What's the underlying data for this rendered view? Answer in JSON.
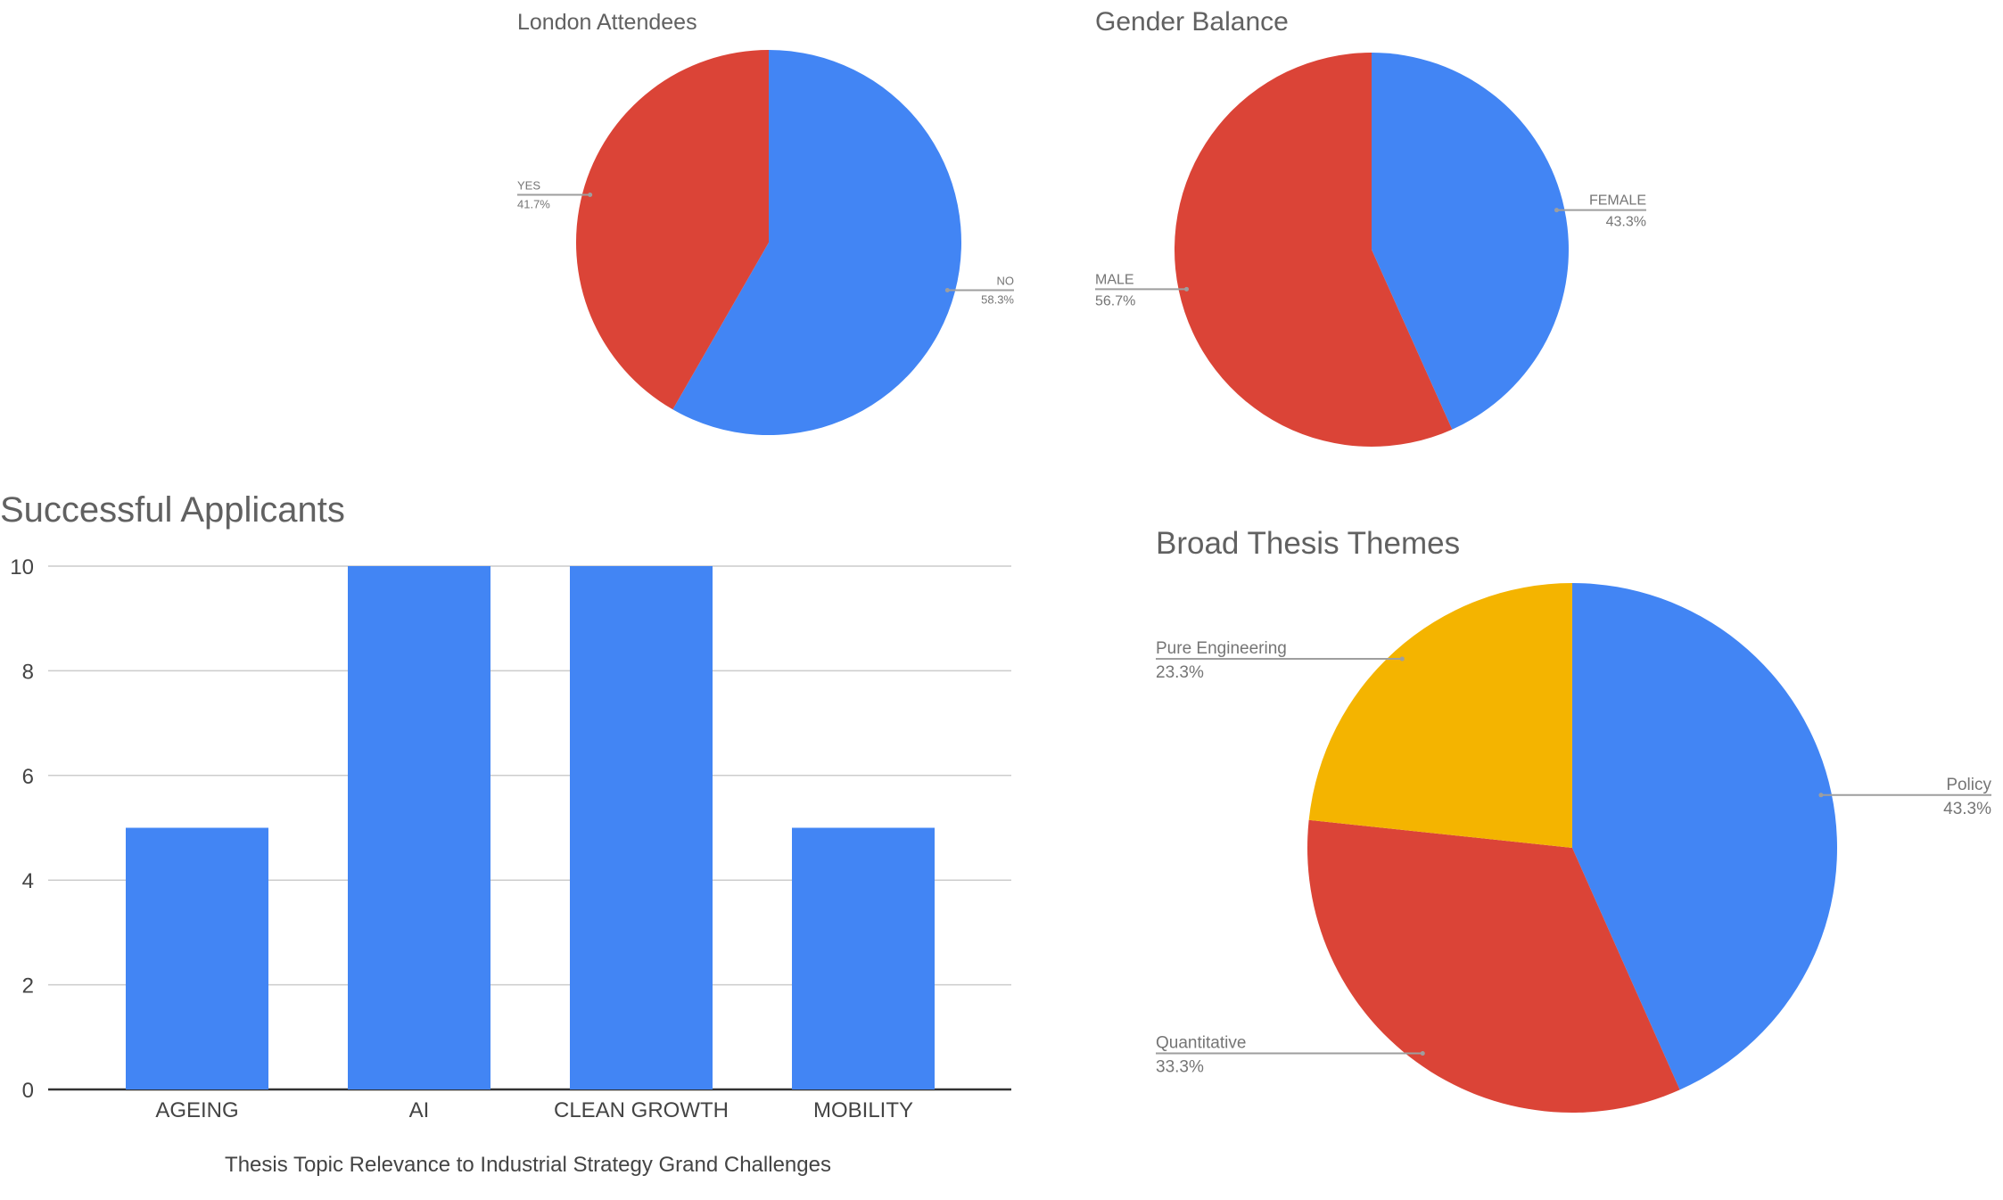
{
  "chart_data": [
    {
      "type": "pie",
      "title": "London Attendees",
      "slices": [
        {
          "label": "NO",
          "value": 58.3,
          "pct_label": "58.3%",
          "color": "#4285F4"
        },
        {
          "label": "YES",
          "value": 41.7,
          "pct_label": "41.7%",
          "color": "#DB4437"
        }
      ]
    },
    {
      "type": "pie",
      "title": "Gender Balance",
      "slices": [
        {
          "label": "FEMALE",
          "value": 43.3,
          "pct_label": "43.3%",
          "color": "#4285F4"
        },
        {
          "label": "MALE",
          "value": 56.7,
          "pct_label": "56.7%",
          "color": "#DB4437"
        }
      ]
    },
    {
      "type": "bar",
      "title": "Successful Applicants",
      "xlabel": "Thesis Topic Relevance to Industrial Strategy Grand Challenges",
      "ylabel": "",
      "categories": [
        "AGEING",
        "AI",
        "CLEAN GROWTH",
        "MOBILITY"
      ],
      "values": [
        5,
        10,
        10,
        5
      ],
      "ylim": [
        0,
        10
      ],
      "yticks": [
        0,
        2,
        4,
        6,
        8,
        10
      ],
      "color": "#4285F4",
      "grid": true
    },
    {
      "type": "pie",
      "title": "Broad Thesis Themes",
      "slices": [
        {
          "label": "Policy",
          "value": 43.3,
          "pct_label": "43.3%",
          "color": "#4285F4"
        },
        {
          "label": "Quantitative",
          "value": 33.3,
          "pct_label": "33.3%",
          "color": "#DB4437"
        },
        {
          "label": "Pure Engineering",
          "value": 23.3,
          "pct_label": "23.3%",
          "color": "#F4B400"
        }
      ]
    }
  ]
}
